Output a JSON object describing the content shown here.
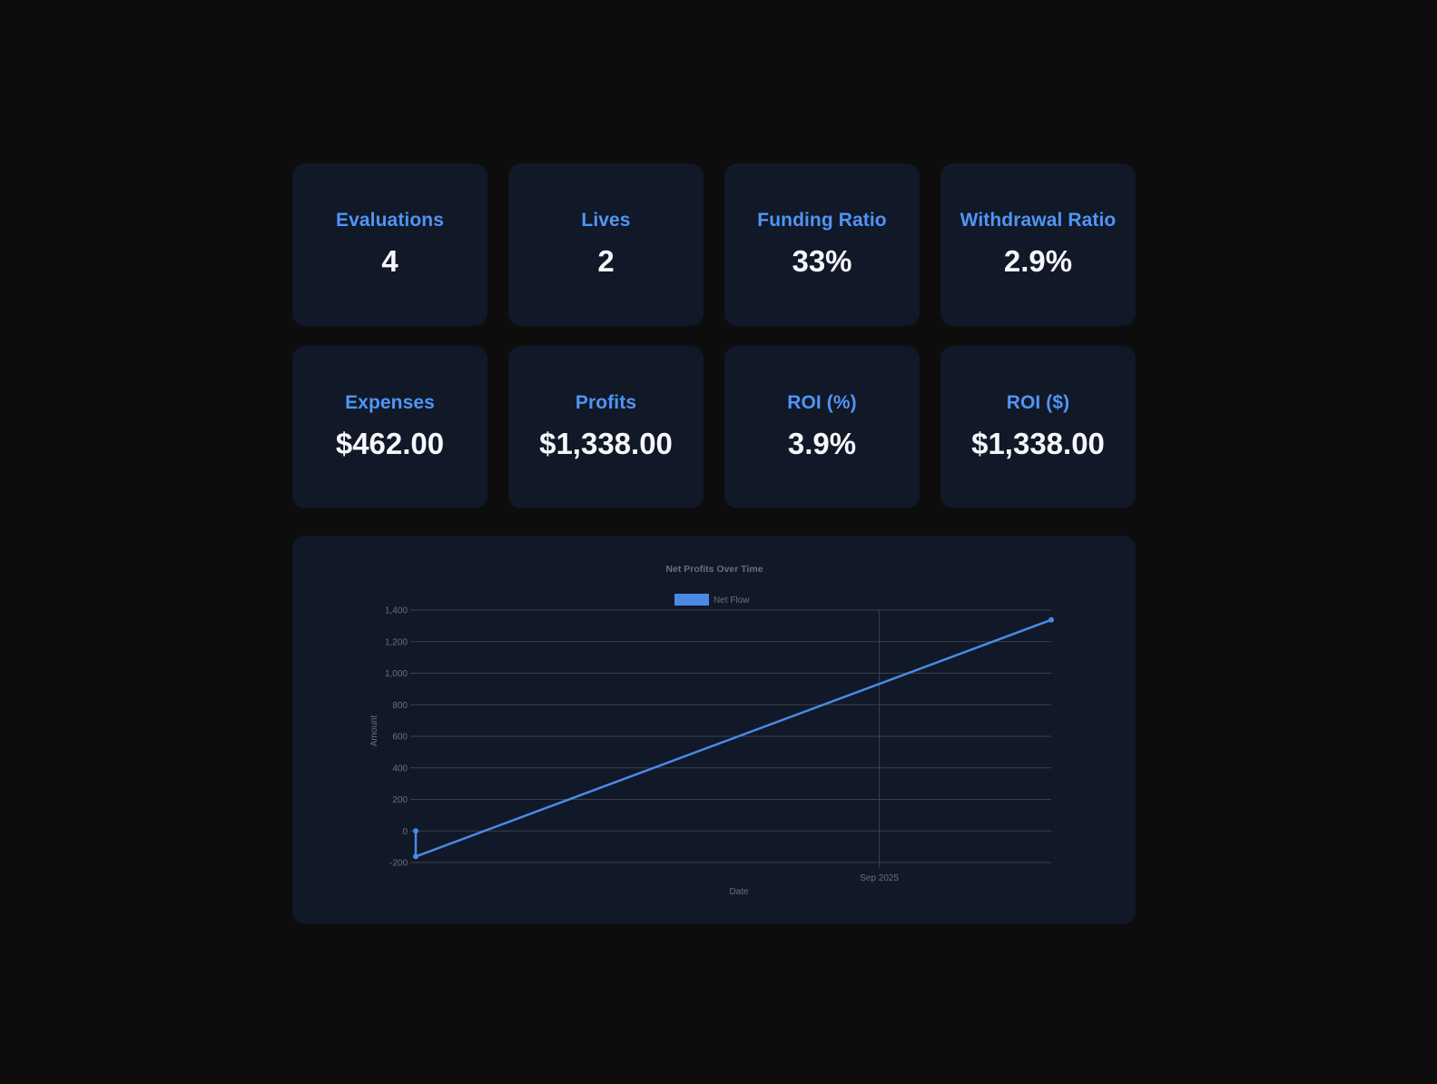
{
  "stats": [
    {
      "label": "Evaluations",
      "value": "4"
    },
    {
      "label": "Lives",
      "value": "2"
    },
    {
      "label": "Funding Ratio",
      "value": "33%"
    },
    {
      "label": "Withdrawal Ratio",
      "value": "2.9%"
    },
    {
      "label": "Expenses",
      "value": "$462.00"
    },
    {
      "label": "Profits",
      "value": "$1,338.00"
    },
    {
      "label": "ROI (%)",
      "value": "3.9%"
    },
    {
      "label": "ROI ($)",
      "value": "$1,338.00"
    }
  ],
  "colors": {
    "accent": "#4f95f5",
    "card_bg": "#111827",
    "page_bg": "#0d0d0d",
    "value_text": "#f5f7fa",
    "line": "#4a8ae6"
  },
  "chart_data": {
    "type": "line",
    "title": "Net Profits Over Time",
    "xlabel": "Date",
    "ylabel": "Amount",
    "ylim": [
      -200,
      1400
    ],
    "y_ticks": [
      "-200",
      "0",
      "200",
      "400",
      "600",
      "800",
      "1,000",
      "1,200",
      "1,400"
    ],
    "x_tick_labels": [
      "Sep 2025"
    ],
    "grid": true,
    "legend_position": "top",
    "series": [
      {
        "name": "Net Flow",
        "points": [
          {
            "x": "2025-03-07",
            "y": 0
          },
          {
            "x": "2025-03-07",
            "y": -162
          },
          {
            "x": "2025-11-06",
            "y": 1338
          }
        ]
      }
    ]
  }
}
